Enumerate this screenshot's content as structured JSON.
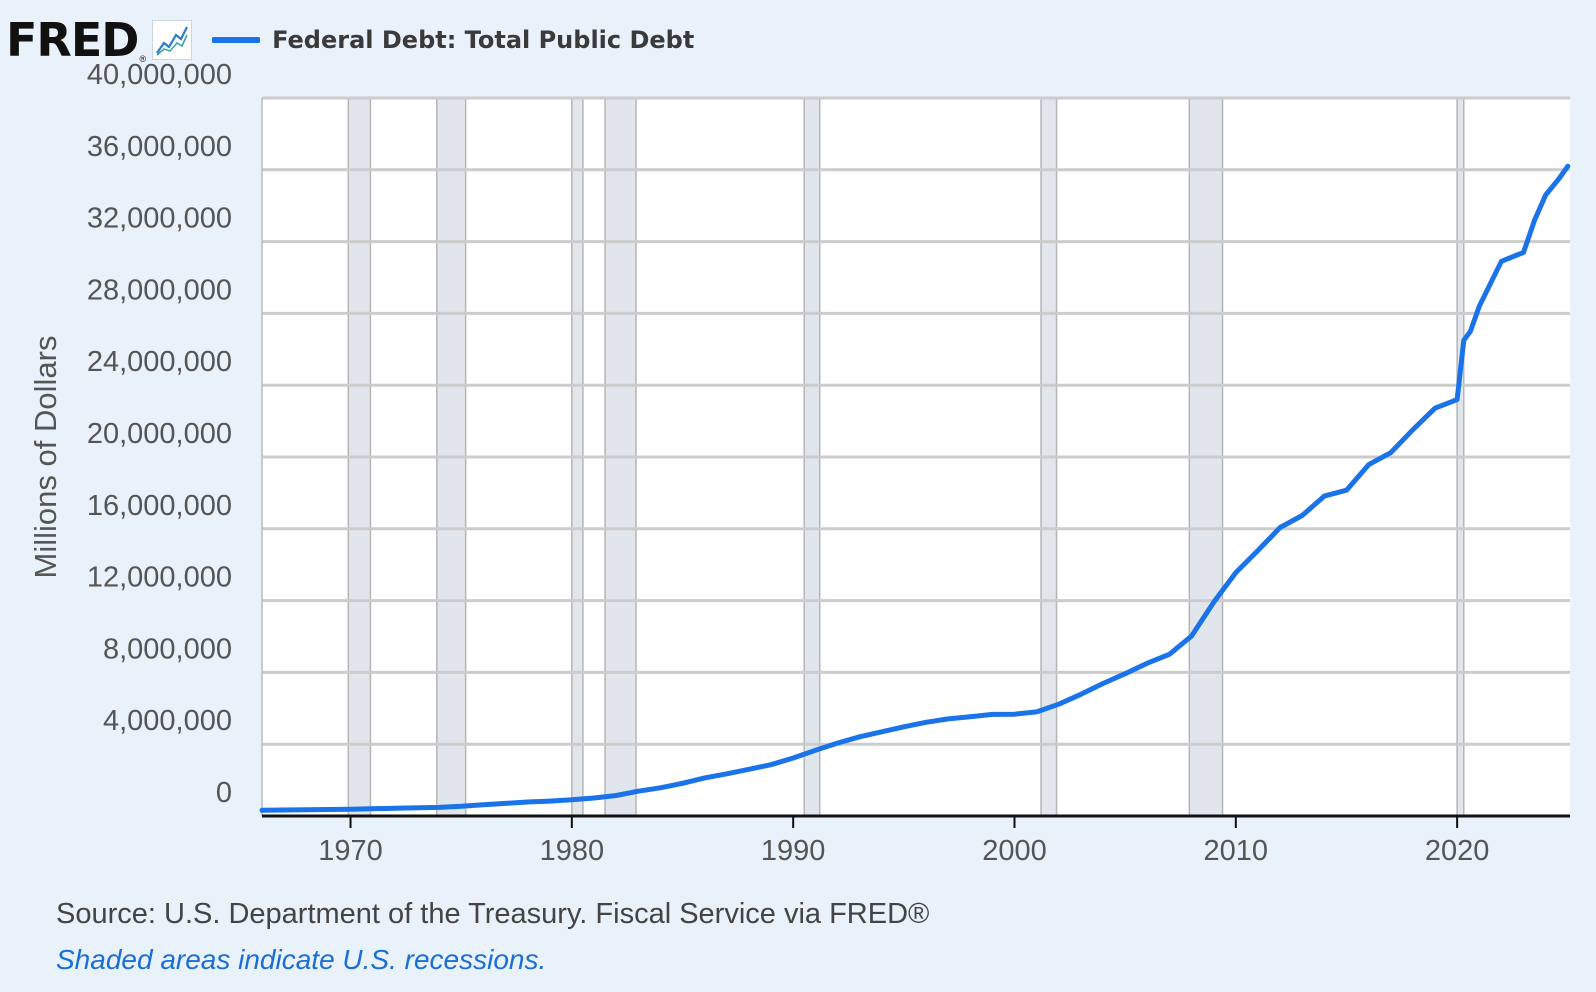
{
  "header": {
    "logo_text": "FRED",
    "logo_reg": "®",
    "logo_icon": "line-graph-icon"
  },
  "footer": {
    "source": "Source: U.S. Department of the Treasury. Fiscal Service via FRED®",
    "recession_note": "Shaded areas indicate U.S. recessions."
  },
  "colors": {
    "series": "#1a73e8",
    "background": "#e9f1fb",
    "recession_band": "#e1e6ec",
    "grid": "#cccccc"
  },
  "chart_data": {
    "type": "line",
    "title": "",
    "xlabel": "",
    "ylabel": "Millions of Dollars",
    "legend_position": "top-left",
    "grid": true,
    "xlim": [
      1966.0,
      2025.1
    ],
    "ylim": [
      0,
      40000000
    ],
    "x_ticks": [
      1970,
      1980,
      1990,
      2000,
      2010,
      2020
    ],
    "y_ticks": [
      0,
      4000000,
      8000000,
      12000000,
      16000000,
      20000000,
      24000000,
      28000000,
      32000000,
      36000000,
      40000000
    ],
    "y_tick_labels": [
      "0",
      "4,000,000",
      "8,000,000",
      "12,000,000",
      "16,000,000",
      "20,000,000",
      "24,000,000",
      "28,000,000",
      "32,000,000",
      "36,000,000",
      "40,000,000"
    ],
    "recessions": [
      [
        1969.9,
        1970.9
      ],
      [
        1973.9,
        1975.2
      ],
      [
        1980.0,
        1980.5
      ],
      [
        1981.5,
        1982.9
      ],
      [
        1990.5,
        1991.2
      ],
      [
        2001.2,
        2001.9
      ],
      [
        2007.9,
        2009.4
      ],
      [
        2020.0,
        2020.3
      ]
    ],
    "series": [
      {
        "name": "Federal Debt: Total Public Debt",
        "x": [
          1966.0,
          1968,
          1970,
          1972,
          1974,
          1975,
          1976,
          1977,
          1978,
          1979,
          1980,
          1981,
          1982,
          1983,
          1984,
          1985,
          1986,
          1987,
          1988,
          1989,
          1990,
          1991,
          1992,
          1993,
          1994,
          1995,
          1996,
          1997,
          1998,
          1999,
          2000,
          2001,
          2002,
          2003,
          2004,
          2005,
          2006,
          2007,
          2008,
          2009,
          2010,
          2011,
          2012,
          2013,
          2014,
          2015,
          2016,
          2017,
          2018,
          2019,
          2020.0,
          2020.3,
          2020.6,
          2021,
          2022,
          2023,
          2023.5,
          2024,
          2024.6,
          2025.0
        ],
        "y": [
          320000,
          350000,
          380000,
          430000,
          480000,
          540000,
          630000,
          700000,
          780000,
          830000,
          900000,
          1000000,
          1140000,
          1380000,
          1570000,
          1820000,
          2120000,
          2350000,
          2600000,
          2860000,
          3230000,
          3660000,
          4060000,
          4410000,
          4690000,
          4970000,
          5220000,
          5410000,
          5530000,
          5660000,
          5670000,
          5800000,
          6230000,
          6780000,
          7380000,
          7930000,
          8510000,
          9010000,
          10020000,
          11910000,
          13560000,
          14790000,
          16070000,
          16740000,
          17820000,
          18150000,
          19570000,
          20240000,
          21520000,
          22720000,
          23200000,
          26500000,
          27000000,
          28400000,
          30900000,
          31400000,
          33200000,
          34600000,
          35500000,
          36200000
        ]
      }
    ]
  }
}
